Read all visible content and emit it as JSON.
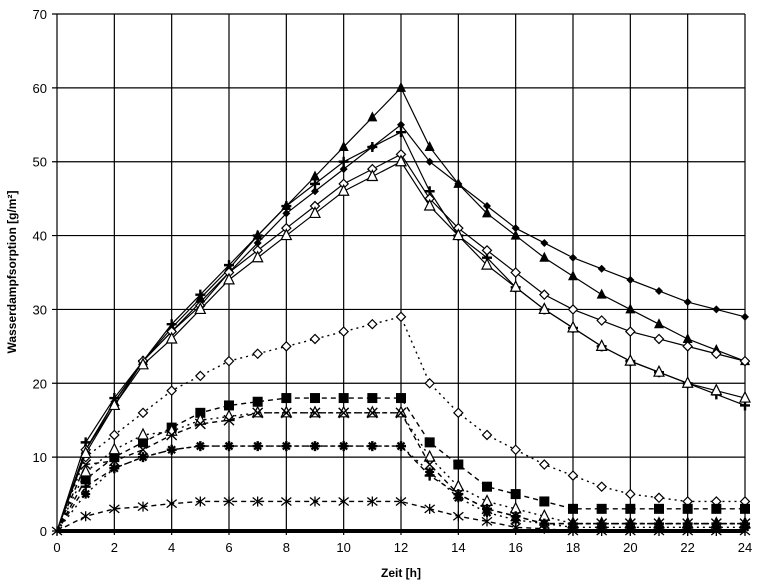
{
  "chart_data": {
    "type": "line",
    "title": "",
    "xlabel": "Zeit [h]",
    "ylabel": "Wasserdampfsorption [g/m²]",
    "xlim": [
      0,
      24
    ],
    "ylim": [
      0,
      70
    ],
    "xticks": [
      0,
      2,
      4,
      6,
      8,
      10,
      12,
      14,
      16,
      18,
      20,
      22,
      24
    ],
    "yticks": [
      0,
      10,
      20,
      30,
      40,
      50,
      60,
      70
    ],
    "grid": true,
    "legend": null,
    "x": [
      0,
      1,
      2,
      3,
      4,
      5,
      6,
      7,
      8,
      9,
      10,
      11,
      12,
      13,
      14,
      15,
      16,
      17,
      18,
      19,
      20,
      21,
      22,
      23,
      24
    ],
    "series": [
      {
        "name": "filled-triangle-solid",
        "marker": "triangle-filled",
        "line": "solid",
        "values": [
          0,
          11,
          17.5,
          23,
          27.5,
          31.5,
          35.5,
          40,
          44,
          48,
          52,
          56,
          60,
          52,
          47,
          43,
          40,
          37,
          34.5,
          32,
          30,
          28,
          26,
          24.5,
          23
        ]
      },
      {
        "name": "filled-diamond-solid",
        "marker": "diamond-filled",
        "line": "solid",
        "values": [
          0,
          11,
          17.5,
          23,
          27,
          31,
          35,
          39,
          43,
          46,
          49,
          52,
          55,
          50,
          47,
          44,
          41,
          39,
          37,
          35.5,
          34,
          32.5,
          31,
          30,
          29
        ]
      },
      {
        "name": "plus-solid",
        "marker": "plus",
        "line": "solid",
        "values": [
          0,
          12,
          18,
          23,
          28,
          32,
          36,
          40,
          44,
          47,
          50,
          52,
          54,
          46,
          40,
          37,
          33,
          30,
          27.5,
          25,
          23,
          21.5,
          20,
          18.5,
          17
        ]
      },
      {
        "name": "open-diamond-solid",
        "marker": "diamond-open",
        "line": "solid",
        "values": [
          0,
          11,
          17,
          23,
          27,
          30.5,
          35,
          38,
          41,
          44,
          47,
          49,
          51,
          45,
          41,
          38,
          35,
          32,
          30,
          28.5,
          27,
          26,
          25,
          24,
          23
        ]
      },
      {
        "name": "open-triangle-solid",
        "marker": "triangle-open",
        "line": "solid",
        "values": [
          0,
          10.5,
          17,
          22.5,
          26,
          30,
          34,
          37,
          40,
          43,
          46,
          48,
          50,
          44,
          40,
          36,
          33,
          30,
          27.5,
          25,
          23,
          21.5,
          20,
          19,
          18
        ]
      },
      {
        "name": "open-diamond-dotted",
        "marker": "diamond-open",
        "line": "dotted",
        "values": [
          0,
          10,
          13,
          16,
          19,
          21,
          23,
          24,
          25,
          26,
          27,
          28,
          29,
          20,
          16,
          13,
          11,
          9,
          7.5,
          6,
          5,
          4.5,
          4,
          4,
          4
        ]
      },
      {
        "name": "filled-square-dashed",
        "marker": "square-filled",
        "line": "dashed",
        "values": [
          0,
          7,
          10,
          12,
          14,
          16,
          17,
          17.5,
          18,
          18,
          18,
          18,
          18,
          12,
          9,
          6,
          5,
          4,
          3,
          3,
          3,
          3,
          3,
          3,
          3
        ]
      },
      {
        "name": "open-triangle-dotted",
        "marker": "triangle-open",
        "line": "dotted",
        "values": [
          0,
          8,
          11,
          13,
          13.5,
          15,
          15.5,
          16,
          16,
          16,
          16,
          16,
          16,
          10,
          6,
          4,
          3,
          2,
          1,
          1,
          1,
          1,
          1,
          1,
          1
        ]
      },
      {
        "name": "cross-dashed",
        "marker": "x",
        "line": "dashed",
        "values": [
          0,
          9,
          9.5,
          11,
          13,
          14.5,
          15,
          16,
          16,
          16,
          16,
          16,
          16,
          9,
          5,
          3,
          2,
          1,
          1,
          1,
          1,
          1,
          1,
          1,
          1
        ]
      },
      {
        "name": "plus-dashed",
        "marker": "plus",
        "line": "dashed",
        "values": [
          0,
          6,
          8.5,
          10,
          11,
          11.5,
          11.5,
          11.5,
          11.5,
          11.5,
          11.5,
          11.5,
          11.5,
          7.5,
          5,
          3,
          2,
          1,
          1,
          1,
          1,
          1,
          1,
          1,
          1
        ]
      },
      {
        "name": "asterisk-dotted",
        "marker": "asterisk-filled",
        "line": "dotted",
        "values": [
          0,
          5,
          8.5,
          10,
          11,
          11.5,
          11.5,
          11.5,
          11.5,
          11.5,
          11.5,
          11.5,
          11.5,
          8,
          4.5,
          2.5,
          1.5,
          1,
          0.5,
          0.5,
          0.5,
          0.5,
          0.5,
          0.5,
          0.5
        ]
      },
      {
        "name": "star-dashed",
        "marker": "star",
        "line": "dashed",
        "values": [
          0,
          2,
          3,
          3.3,
          3.7,
          4,
          4,
          4,
          4,
          4,
          4,
          4,
          4,
          3,
          2,
          1.3,
          0.5,
          0.3,
          0,
          0,
          0,
          0,
          0,
          0,
          0
        ]
      },
      {
        "name": "baseline-bold",
        "marker": "none",
        "line": "solid-bold",
        "values": [
          0,
          0,
          0,
          0,
          0,
          0,
          0,
          0,
          0,
          0,
          0,
          0,
          0,
          0,
          0,
          0,
          0,
          0,
          0,
          0,
          0,
          0,
          0,
          0,
          0
        ]
      }
    ]
  },
  "axes": {
    "x_title": "Zeit [h]",
    "y_title": "Wasserdampfsorption [g/m²]"
  }
}
